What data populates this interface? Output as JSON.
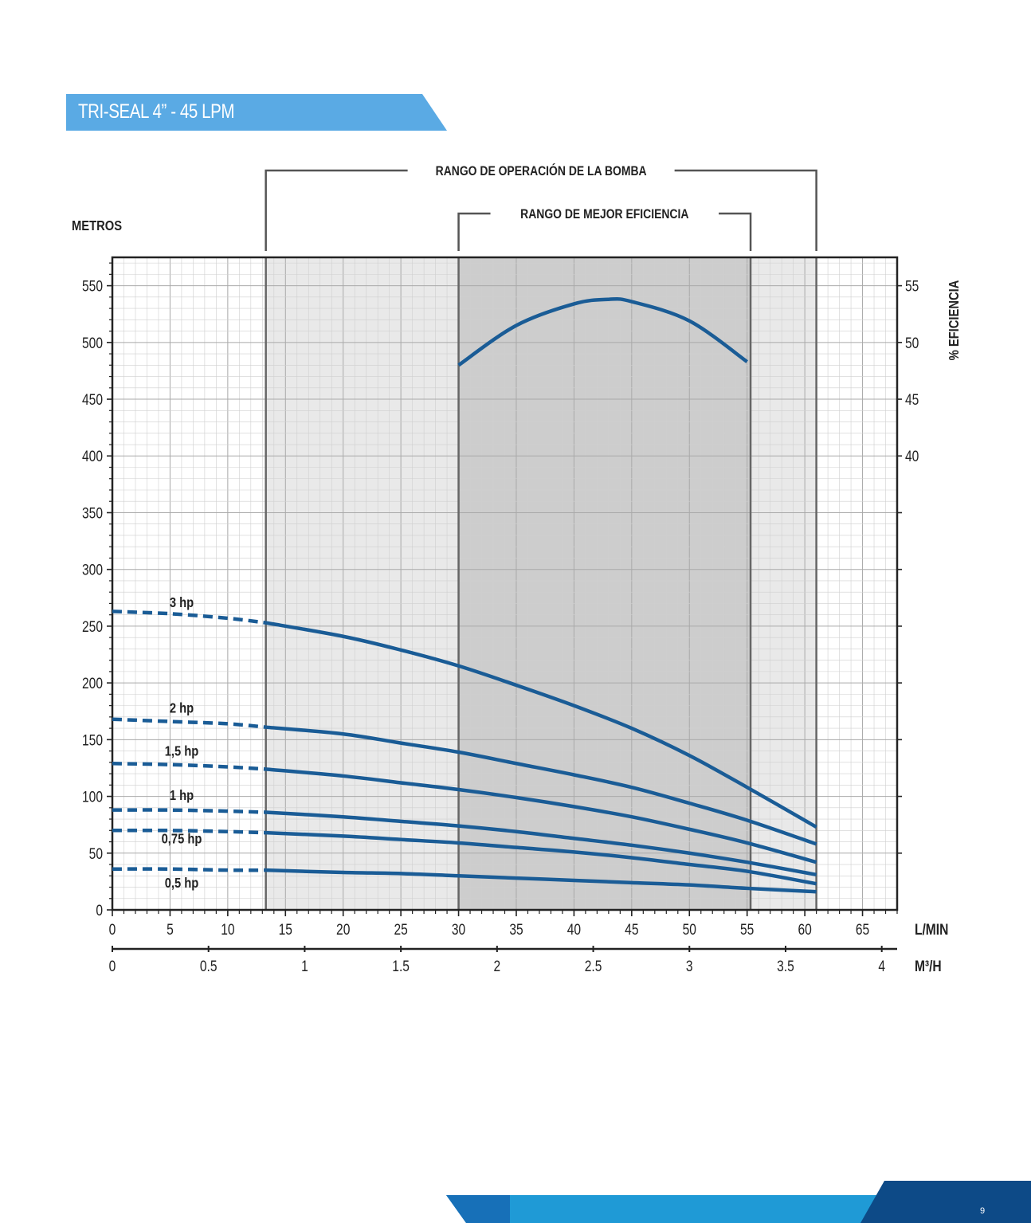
{
  "page": {
    "title": "TRI-SEAL 4” - 45 LPM",
    "page_number": "9"
  },
  "colors": {
    "accent": "#5aaae4",
    "curve": "#1a5c96",
    "footer_dark": "#0d4a87",
    "operating_range_fill": "#e9e9e9",
    "efficiency_range_fill": "#cdcdcd"
  },
  "chart_data": {
    "type": "line",
    "ylabel": "METROS",
    "y2label": "% EFICIENCIA",
    "xlabel": "L/MIN",
    "x2label": "M³/H",
    "xlim": [
      0,
      68
    ],
    "ylim": [
      0,
      575
    ],
    "y2lim": [
      0,
      57.5
    ],
    "grid": true,
    "x_ticks": [
      0,
      5,
      10,
      15,
      20,
      25,
      30,
      35,
      40,
      45,
      50,
      55,
      60,
      65
    ],
    "y_ticks": [
      0,
      50,
      100,
      150,
      200,
      250,
      300,
      350,
      400,
      450,
      500,
      550
    ],
    "y2_ticks": [
      40,
      45,
      50,
      55
    ],
    "x2_ticks": [
      0,
      0.5,
      1,
      1.5,
      2,
      2.5,
      3,
      3.5,
      4
    ],
    "x2_tick_labels": [
      "0",
      "0.5",
      "1",
      "1.5",
      "2",
      "2.5",
      "3",
      "3.5",
      "4"
    ],
    "ranges": [
      {
        "label": "RANGO DE OPERACIÓN DE LA BOMBA",
        "from": 13.3,
        "to": 61
      },
      {
        "label": "RANGO DE MEJOR EFICIENCIA",
        "from": 30,
        "to": 55.3
      }
    ],
    "series": [
      {
        "name": "3 hp",
        "dashed": {
          "x": [
            0,
            5,
            10,
            13.3
          ],
          "y": [
            263,
            261,
            257,
            253
          ]
        },
        "solid": {
          "x": [
            13.3,
            20,
            25,
            30,
            35,
            40,
            45,
            50,
            55,
            61
          ],
          "y": [
            253,
            241,
            229,
            215,
            198,
            180,
            160,
            136,
            108,
            73
          ]
        }
      },
      {
        "name": "2 hp",
        "dashed": {
          "x": [
            0,
            5,
            10,
            13.3
          ],
          "y": [
            168,
            166,
            164,
            161
          ]
        },
        "solid": {
          "x": [
            13.3,
            20,
            25,
            30,
            35,
            40,
            45,
            50,
            55,
            61
          ],
          "y": [
            161,
            155,
            147,
            139,
            129,
            119,
            108,
            94,
            79,
            58
          ]
        }
      },
      {
        "name": "1,5 hp",
        "dashed": {
          "x": [
            0,
            5,
            10,
            13.3
          ],
          "y": [
            129,
            128,
            126,
            124
          ]
        },
        "solid": {
          "x": [
            13.3,
            20,
            25,
            30,
            35,
            40,
            45,
            50,
            55,
            61
          ],
          "y": [
            124,
            118,
            112,
            106,
            99,
            91,
            82,
            71,
            59,
            42
          ]
        }
      },
      {
        "name": "1 hp",
        "dashed": {
          "x": [
            0,
            5,
            10,
            13.3
          ],
          "y": [
            88,
            88,
            87,
            86
          ]
        },
        "solid": {
          "x": [
            13.3,
            20,
            25,
            30,
            35,
            40,
            45,
            50,
            55,
            61
          ],
          "y": [
            86,
            82,
            78,
            74,
            69,
            63,
            57,
            50,
            42,
            31
          ]
        }
      },
      {
        "name": "0,75 hp",
        "dashed": {
          "x": [
            0,
            5,
            10,
            13.3
          ],
          "y": [
            70,
            70,
            69,
            68
          ]
        },
        "solid": {
          "x": [
            13.3,
            20,
            25,
            30,
            35,
            40,
            45,
            50,
            55,
            61
          ],
          "y": [
            68,
            65,
            62,
            59,
            55,
            51,
            46,
            40,
            34,
            23
          ]
        }
      },
      {
        "name": "0,5 hp",
        "dashed": {
          "x": [
            0,
            5,
            10,
            13.3
          ],
          "y": [
            36,
            36,
            35,
            35
          ]
        },
        "solid": {
          "x": [
            13.3,
            20,
            25,
            30,
            35,
            40,
            45,
            50,
            55,
            61
          ],
          "y": [
            35,
            33,
            32,
            30,
            28,
            26,
            24,
            22,
            19,
            16
          ]
        }
      }
    ],
    "efficiency_curve": {
      "x": [
        30,
        35,
        40,
        43,
        45,
        50,
        55
      ],
      "y": [
        48.0,
        51.5,
        53.4,
        53.8,
        53.6,
        51.9,
        48.3
      ]
    }
  }
}
